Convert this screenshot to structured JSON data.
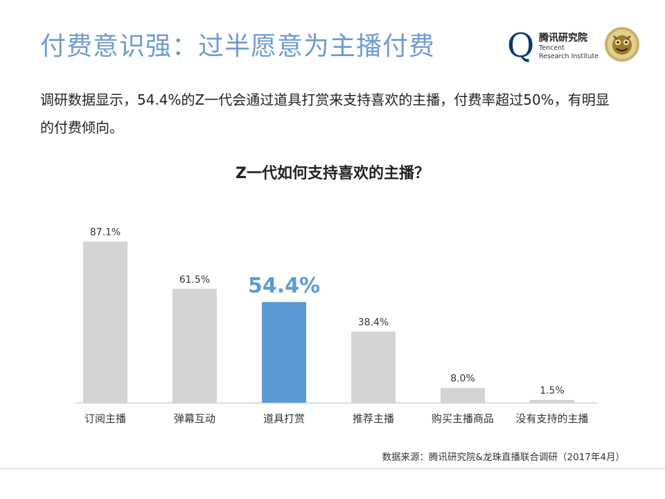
{
  "header": {
    "title": "付费意识强：过半愿意为主播付费",
    "logo_cn": "腾讯研究院",
    "logo_en_line1": "Tencent",
    "logo_en_line2": "Research Institute"
  },
  "intro": {
    "text": "调研数据显示，54.4%的Z一代会通过道具打赏来支持喜欢的主播，付费率超过50%，有明显的付费倾向。"
  },
  "colors": {
    "bar": "#d4d4d4",
    "highlight": "#5b9bd5",
    "title": "#6f9ccf"
  },
  "chart_data": {
    "type": "bar",
    "title": "Z一代如何支持喜欢的主播？",
    "categories": [
      "订阅主播",
      "弹幕互动",
      "道具打赏",
      "推荐主播",
      "购买主播商品",
      "没有支持的主播"
    ],
    "values": [
      87.1,
      61.5,
      54.4,
      38.4,
      8.0,
      1.5
    ],
    "value_labels": [
      "87.1%",
      "61.5%",
      "54.4%",
      "38.4%",
      "8.0%",
      "1.5%"
    ],
    "highlight_category": "道具打赏",
    "unit": "%",
    "ylim": [
      0,
      100
    ],
    "grid": false,
    "legend": "none"
  },
  "footer": {
    "source": "数据来源：腾讯研究院&龙珠直播联合调研（2017年4月）"
  }
}
